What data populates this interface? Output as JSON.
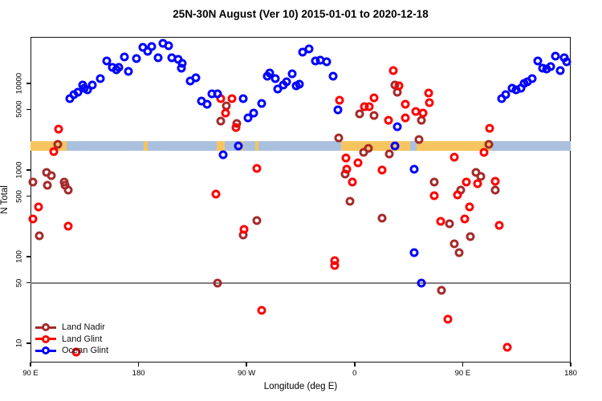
{
  "title": "25N-30N August (Ver 10)   2015-01-01 to 2020-12-18",
  "colors": {
    "land_nadir": "#A52A2A",
    "land_glint": "#FF0000",
    "ocean_glint": "#0000FF",
    "band_land": "#F6C55F",
    "band_ocean": "#AAC0DF",
    "hline": "#808080"
  },
  "legend": {
    "items": [
      {
        "label": "Land Nadir",
        "color_key": "land_nadir"
      },
      {
        "label": "Land Glint",
        "color_key": "land_glint"
      },
      {
        "label": "Ocean Glint",
        "color_key": "ocean_glint"
      }
    ]
  },
  "chart_data": {
    "type": "scatter",
    "title": "25N-30N August (Ver 10)   2015-01-01 to 2020-12-18",
    "xlabel": "Longitude (deg E)",
    "ylabel": "N Total",
    "xlim": [
      90,
      540
    ],
    "ylim": [
      6,
      34400
    ],
    "yscale": "log",
    "grid": false,
    "x_ticks": [
      {
        "v": 90,
        "label": "90 E"
      },
      {
        "v": 180,
        "label": "180"
      },
      {
        "v": 270,
        "label": "90 W"
      },
      {
        "v": 360,
        "label": "0"
      },
      {
        "v": 450,
        "label": "90 E"
      },
      {
        "v": 540,
        "label": "180"
      }
    ],
    "y_ticks": [
      {
        "v": 10,
        "label": "10"
      },
      {
        "v": 50,
        "label": "50"
      },
      {
        "v": 100,
        "label": "100"
      },
      {
        "v": 500,
        "label": "500"
      },
      {
        "v": 1000,
        "label": "1000"
      },
      {
        "v": 5000,
        "label": "5000"
      },
      {
        "v": 10000,
        "label": "10000"
      }
    ],
    "hline": {
      "value": 50
    },
    "band": {
      "n_top": 2150,
      "n_bottom": 1670,
      "ocean_span": [
        90,
        540
      ],
      "land_segments": [
        [
          90,
          120
        ],
        [
          184.3,
          187.6
        ],
        [
          245,
          251.8
        ],
        [
          263.9,
          267.2
        ],
        [
          277.2,
          279.9
        ],
        [
          349,
          406.3
        ],
        [
          411.6,
          473.9
        ]
      ]
    },
    "series": [
      {
        "name": "Land Nadir",
        "color_key": "land_nadir",
        "points": [
          [
            112.7,
            1980
          ],
          [
            103.4,
            940
          ],
          [
            107.4,
            860
          ],
          [
            92,
            726
          ],
          [
            104,
            667
          ],
          [
            118.1,
            726
          ],
          [
            118.8,
            667
          ],
          [
            121.4,
            590
          ],
          [
            97.4,
            174
          ],
          [
            253.2,
            5500
          ],
          [
            248.5,
            3670
          ],
          [
            261.8,
            3440
          ],
          [
            278.6,
            261
          ],
          [
            267.2,
            177
          ],
          [
            245.8,
            50
          ],
          [
            356.1,
            436
          ],
          [
            382.9,
            278
          ],
          [
            364.1,
            4450
          ],
          [
            376.2,
            4270
          ],
          [
            393.6,
            9600
          ],
          [
            395.6,
            7900
          ],
          [
            415.6,
            3750
          ],
          [
            346.8,
            2350
          ],
          [
            371.5,
            1780
          ],
          [
            367.5,
            1600
          ],
          [
            388.9,
            1530
          ],
          [
            352.1,
            900
          ],
          [
            426.3,
            726
          ],
          [
            413.3,
            2225
          ],
          [
            432.3,
            41
          ],
          [
            439.1,
            240
          ],
          [
            442.9,
            140
          ],
          [
            447.1,
            111
          ],
          [
            456.2,
            170
          ],
          [
            461.1,
            940
          ],
          [
            465.1,
            843
          ],
          [
            448.4,
            590
          ],
          [
            477.2,
            590
          ],
          [
            471.8,
            1980
          ]
        ]
      },
      {
        "name": "Land Glint",
        "color_key": "land_glint",
        "points": [
          [
            113.4,
            2965
          ],
          [
            109.4,
            1630
          ],
          [
            96.7,
            375
          ],
          [
            92,
            272
          ],
          [
            121.4,
            225
          ],
          [
            128.1,
            8
          ],
          [
            248.5,
            6660
          ],
          [
            257.8,
            6660
          ],
          [
            252.5,
            4540
          ],
          [
            261.2,
            3100
          ],
          [
            244.5,
            527
          ],
          [
            278.6,
            1050
          ],
          [
            267.9,
            207
          ],
          [
            282.6,
            24
          ],
          [
            347.4,
            6390
          ],
          [
            376.2,
            6800
          ],
          [
            368.2,
            5380
          ],
          [
            372.2,
            5380
          ],
          [
            402.3,
            5740
          ],
          [
            421.7,
            7745
          ],
          [
            422.3,
            6020
          ],
          [
            411,
            4740
          ],
          [
            417,
            4540
          ],
          [
            388.2,
            3750
          ],
          [
            402.3,
            4000
          ],
          [
            392.3,
            14000
          ],
          [
            396.9,
            9400
          ],
          [
            352.8,
            1380
          ],
          [
            362.8,
            1210
          ],
          [
            353.4,
            1020
          ],
          [
            382.9,
            1000
          ],
          [
            358.1,
            726
          ],
          [
            426.3,
            506
          ],
          [
            343.4,
            90
          ],
          [
            343.4,
            79
          ],
          [
            431.7,
            255
          ],
          [
            443.1,
            1400
          ],
          [
            472.5,
            3030
          ],
          [
            467.8,
            1600
          ],
          [
            455.5,
            375
          ],
          [
            451.7,
            272
          ],
          [
            480.5,
            230
          ],
          [
            453.1,
            726
          ],
          [
            462.4,
            697
          ],
          [
            445.7,
            516
          ],
          [
            477.2,
            741
          ],
          [
            437.7,
            19
          ],
          [
            487.2,
            9
          ]
        ]
      },
      {
        "name": "Ocean Glint",
        "color_key": "ocean_glint",
        "points": [
          [
            122.8,
            6670
          ],
          [
            126.1,
            7400
          ],
          [
            129.5,
            7900
          ],
          [
            133.5,
            9550
          ],
          [
            134.8,
            8800
          ],
          [
            137.5,
            8400
          ],
          [
            141.5,
            9550
          ],
          [
            148.2,
            11350
          ],
          [
            153.5,
            18200
          ],
          [
            158.2,
            15300
          ],
          [
            161.5,
            14350
          ],
          [
            163.6,
            15300
          ],
          [
            168.2,
            20200
          ],
          [
            171.6,
            13800
          ],
          [
            178.3,
            19350
          ],
          [
            183.6,
            26100
          ],
          [
            187.6,
            23450
          ],
          [
            191,
            26650
          ],
          [
            196.3,
            19800
          ],
          [
            200.3,
            29000
          ],
          [
            205,
            27200
          ],
          [
            207.7,
            19800
          ],
          [
            213,
            19000
          ],
          [
            216.4,
            17000
          ],
          [
            215.7,
            15000
          ],
          [
            223.1,
            10700
          ],
          [
            227.7,
            11600
          ],
          [
            232.4,
            6250
          ],
          [
            237.1,
            5700
          ],
          [
            241.1,
            7600
          ],
          [
            245.8,
            7600
          ],
          [
            267.2,
            6660
          ],
          [
            282.6,
            5880
          ],
          [
            271.2,
            4000
          ],
          [
            275.9,
            4540
          ],
          [
            287.3,
            12100
          ],
          [
            289.3,
            13200
          ],
          [
            294,
            11350
          ],
          [
            296,
            8600
          ],
          [
            300.7,
            9550
          ],
          [
            303.4,
            10400
          ],
          [
            308,
            13000
          ],
          [
            311.4,
            9400
          ],
          [
            314.1,
            9750
          ],
          [
            316.7,
            23000
          ],
          [
            322.1,
            25000
          ],
          [
            327.4,
            18200
          ],
          [
            331.4,
            18600
          ],
          [
            336.8,
            17800
          ],
          [
            342.1,
            12100
          ],
          [
            346.1,
            4950
          ],
          [
            395.6,
            3160
          ],
          [
            393.6,
            1900
          ],
          [
            263.2,
            1900
          ],
          [
            250.5,
            1500
          ],
          [
            409.6,
            1020
          ],
          [
            415.6,
            50
          ],
          [
            409.6,
            111
          ],
          [
            482.5,
            6600
          ],
          [
            485.9,
            7400
          ],
          [
            491.2,
            8800
          ],
          [
            494.6,
            8400
          ],
          [
            498.6,
            8700
          ],
          [
            501.2,
            10000
          ],
          [
            503.9,
            10450
          ],
          [
            507.9,
            11350
          ],
          [
            512.6,
            18200
          ],
          [
            516.6,
            15100
          ],
          [
            519.9,
            14800
          ],
          [
            523.3,
            15800
          ],
          [
            527.3,
            20650
          ],
          [
            531.3,
            14100
          ],
          [
            534.6,
            19800
          ],
          [
            536.6,
            17800
          ]
        ]
      }
    ]
  }
}
